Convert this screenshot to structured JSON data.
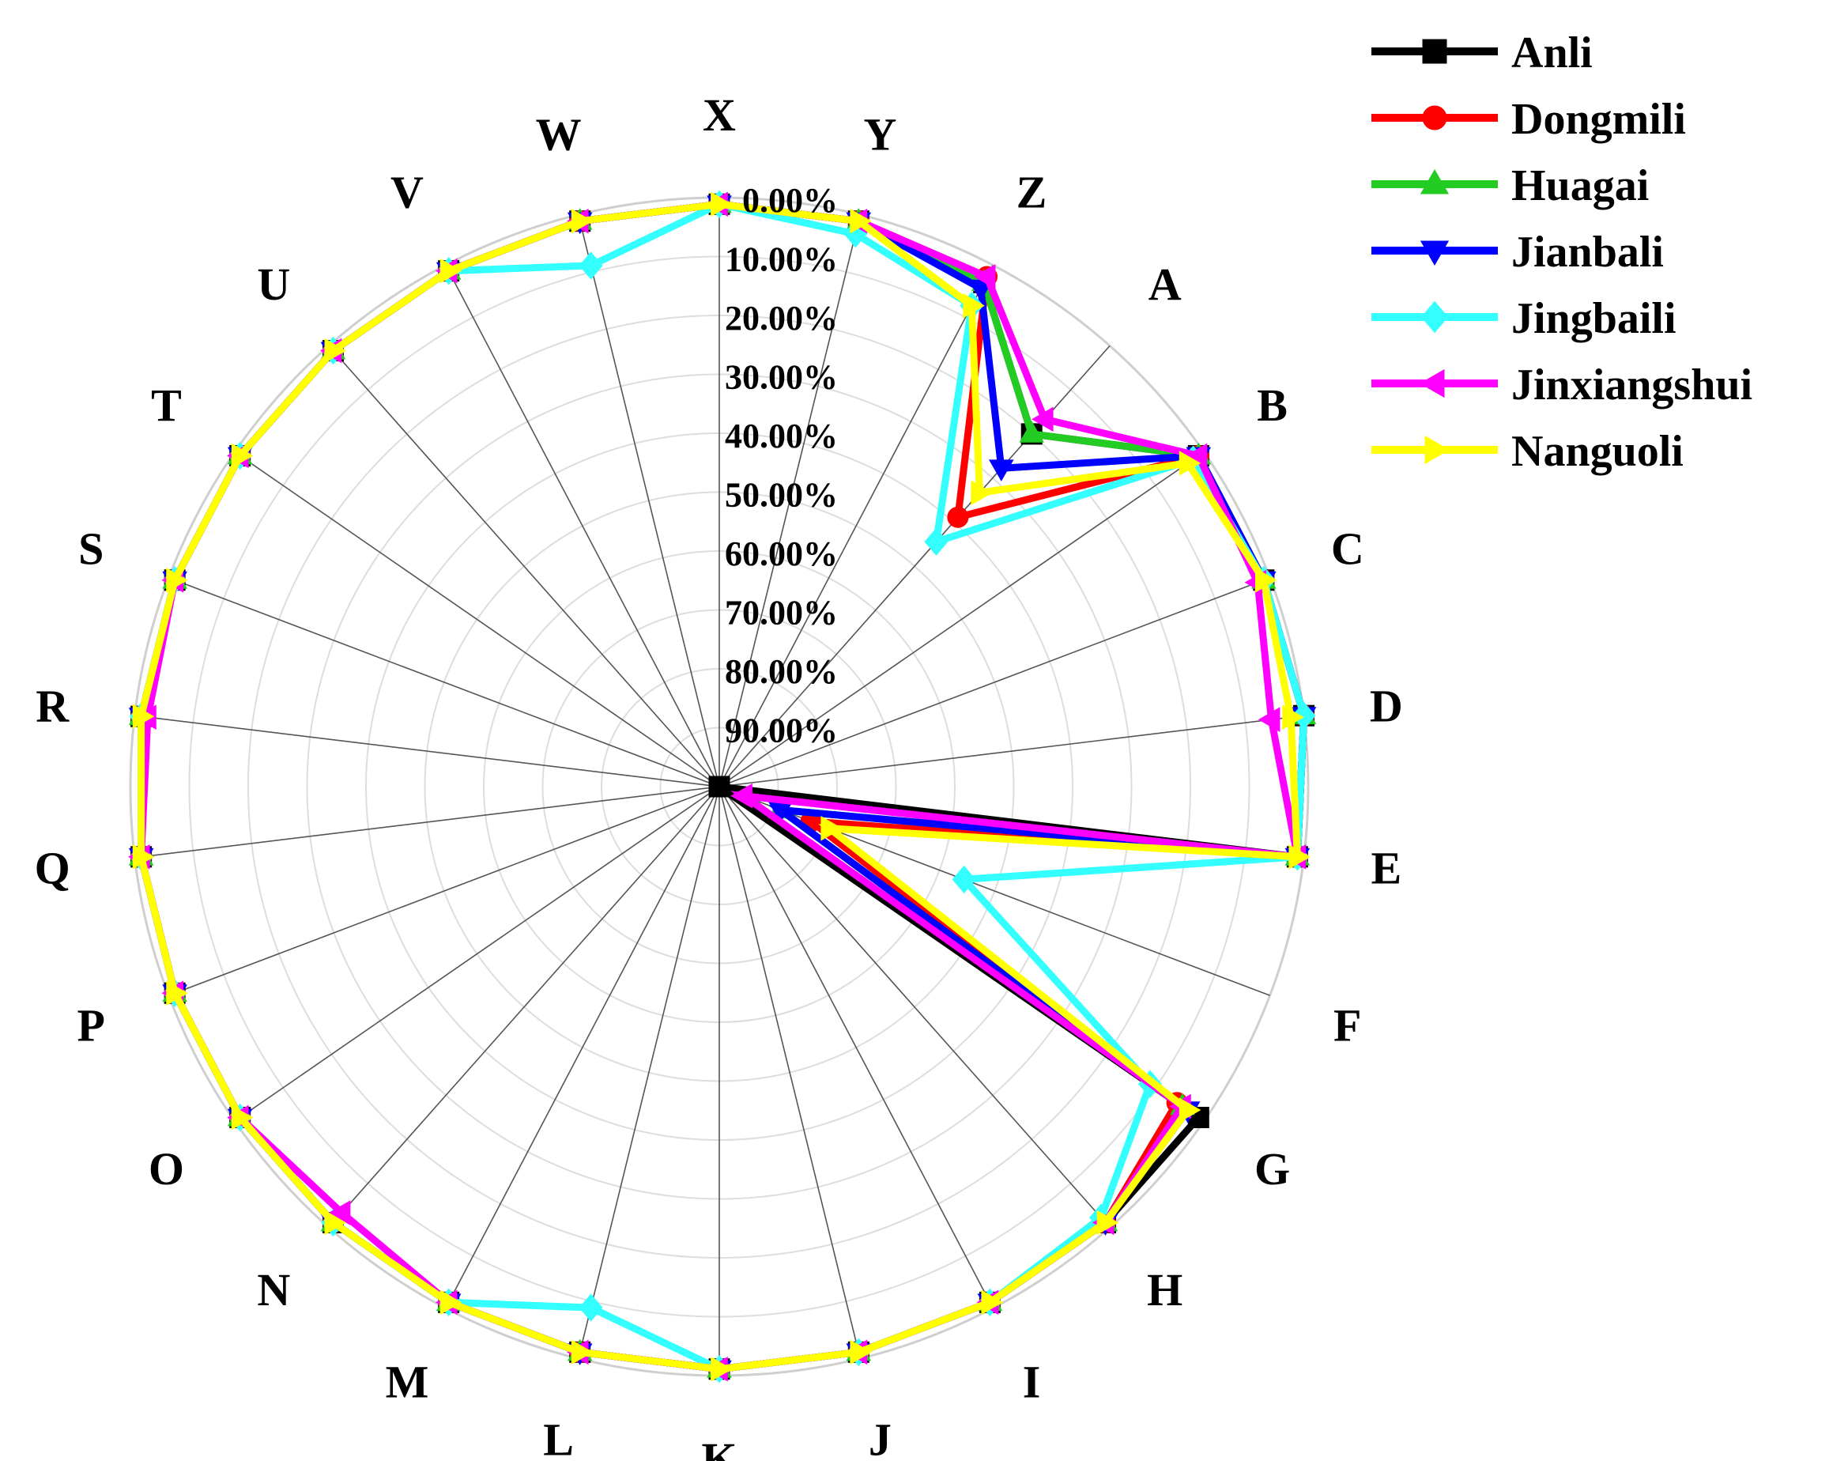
{
  "chart_data": {
    "type": "radar",
    "axis_direction": "reversed (0.00% at outer ring, 90.00% at center)",
    "grid": true,
    "legend_position": "top-right",
    "categories": [
      "A",
      "B",
      "C",
      "D",
      "E",
      "F",
      "G",
      "H",
      "I",
      "J",
      "K",
      "L",
      "M",
      "N",
      "O",
      "P",
      "Q",
      "R",
      "S",
      "T",
      "U",
      "V",
      "W",
      "X",
      "Y",
      "Z"
    ],
    "ring_labels": [
      "0.00%",
      "10.00%",
      "20.00%",
      "30.00%",
      "40.00%",
      "50.00%",
      "60.00%",
      "70.00%",
      "80.00%",
      "90.00%"
    ],
    "rlim": [
      0,
      90
    ],
    "series": [
      {
        "name": "Anli",
        "color": "#000000",
        "marker": "square",
        "values": [
          18,
          1,
          1,
          0,
          1,
          90,
          1,
          1,
          1,
          1,
          1,
          1,
          1,
          1,
          1,
          1,
          1,
          1,
          1,
          1,
          1,
          1,
          1,
          1,
          1,
          3
        ]
      },
      {
        "name": "Dongmili",
        "color": "#ff0000",
        "marker": "circle",
        "values": [
          35,
          1,
          1,
          0,
          1,
          75,
          5,
          1,
          1,
          1,
          1,
          1,
          1,
          1,
          1,
          1,
          1,
          1,
          1,
          1,
          1,
          1,
          1,
          1,
          1,
          2
        ]
      },
      {
        "name": "Huagai",
        "color": "#22cc22",
        "marker": "triangle-up",
        "values": [
          18,
          1,
          1,
          0,
          1,
          80,
          4,
          1,
          1,
          1,
          1,
          1,
          1,
          1,
          1,
          1,
          1,
          1,
          1,
          1,
          1,
          1,
          1,
          1,
          1,
          3
        ]
      },
      {
        "name": "Jianbali",
        "color": "#0000ff",
        "marker": "triangle-down",
        "values": [
          25,
          1,
          1,
          0,
          1,
          80,
          3,
          1,
          1,
          1,
          1,
          1,
          1,
          1,
          1,
          1,
          1,
          1,
          1,
          1,
          1,
          1,
          1,
          1,
          1,
          4
        ]
      },
      {
        "name": "Jingbaili",
        "color": "#33ffff",
        "marker": "diamond",
        "values": [
          40,
          2,
          1,
          0,
          1,
          50,
          10,
          2,
          1,
          1,
          1,
          8,
          1,
          1,
          1,
          1,
          1,
          1,
          1,
          1,
          1,
          1,
          8,
          1,
          3,
          7
        ]
      },
      {
        "name": "Jinxiangshui",
        "color": "#ff00ff",
        "marker": "triangle-left",
        "values": [
          15,
          1,
          2,
          5,
          1,
          86,
          4,
          1,
          1,
          1,
          1,
          1,
          1,
          3,
          1,
          1,
          1,
          2,
          1,
          1,
          1,
          1,
          1,
          1,
          1,
          2
        ]
      },
      {
        "name": "Nanguoli",
        "color": "#ffff00",
        "marker": "triangle-right",
        "values": [
          30,
          3,
          1,
          2,
          1,
          72,
          3,
          1,
          1,
          1,
          1,
          1,
          1,
          1,
          1,
          1,
          1,
          1,
          1,
          1,
          1,
          1,
          1,
          1,
          1,
          7
        ]
      }
    ]
  }
}
